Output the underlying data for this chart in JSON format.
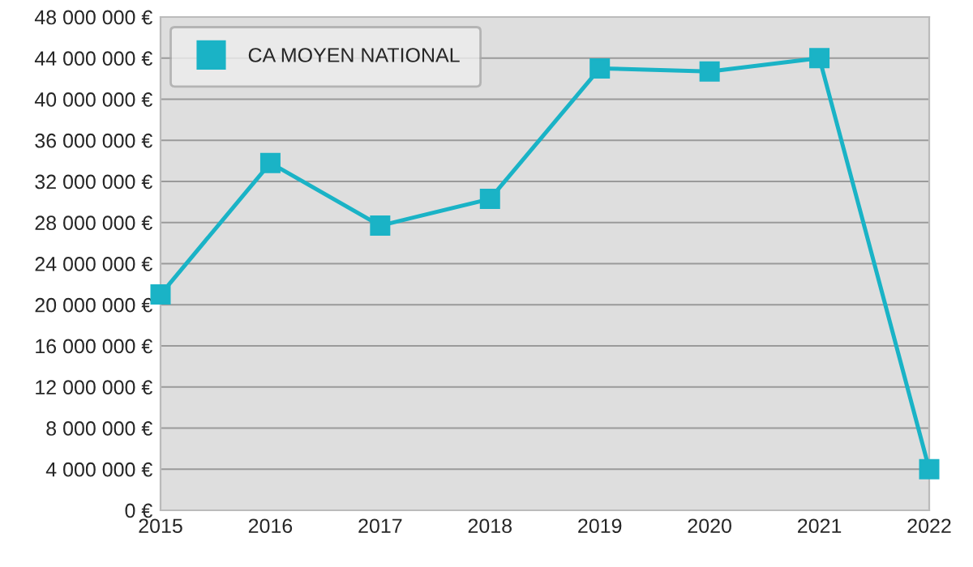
{
  "chart_data": {
    "type": "line",
    "x": [
      2015,
      2016,
      2017,
      2018,
      2019,
      2020,
      2021,
      2022
    ],
    "series": [
      {
        "name": "CA MOYEN NATIONAL",
        "color": "#1ab3c6",
        "values": [
          21000000,
          33800000,
          27700000,
          30300000,
          43000000,
          42700000,
          44000000,
          4000000
        ]
      }
    ],
    "xlim": [
      2015,
      2022
    ],
    "xticks": [
      2015,
      2016,
      2017,
      2018,
      2019,
      2020,
      2021,
      2022
    ],
    "ylim": [
      0,
      48000000
    ],
    "yticks": [
      {
        "value": 0,
        "label": "0 €"
      },
      {
        "value": 4000000,
        "label": "4 000 000 €"
      },
      {
        "value": 8000000,
        "label": "8 000 000 €"
      },
      {
        "value": 12000000,
        "label": "12 000 000 €"
      },
      {
        "value": 16000000,
        "label": "16 000 000 €"
      },
      {
        "value": 20000000,
        "label": "20 000 000 €"
      },
      {
        "value": 24000000,
        "label": "24 000 000 €"
      },
      {
        "value": 28000000,
        "label": "28 000 000 €"
      },
      {
        "value": 32000000,
        "label": "32 000 000 €"
      },
      {
        "value": 36000000,
        "label": "36 000 000 €"
      },
      {
        "value": 40000000,
        "label": "40 000 000 €"
      },
      {
        "value": 44000000,
        "label": "44 000 000 €"
      },
      {
        "value": 48000000,
        "label": "48 000 000 €"
      }
    ],
    "grid": "y",
    "legend": "top left",
    "marker": "square",
    "line_style": "solid"
  }
}
